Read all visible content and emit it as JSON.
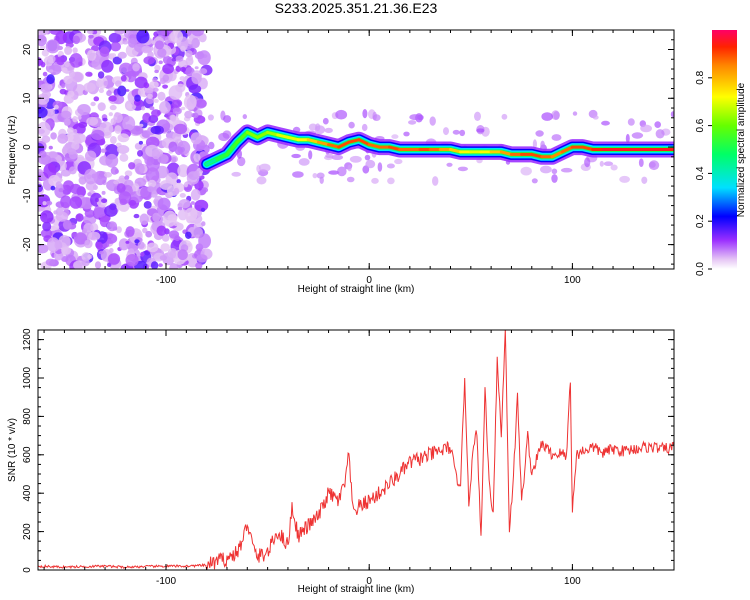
{
  "figure_title": "S233.2025.351.21.36.E23",
  "chart_data": [
    {
      "type": "heatmap",
      "title": "S233.2025.351.21.36.E23",
      "xlabel": "Height of straight line (km)",
      "ylabel": "Frequency (Hz)",
      "xlim": [
        -163,
        150
      ],
      "ylim": [
        -25,
        24
      ],
      "xticks": [
        -100,
        0,
        100
      ],
      "xtick_labels": [
        "-100",
        "0",
        "100"
      ],
      "yticks": [
        20,
        10,
        0,
        -10,
        -20
      ],
      "ytick_labels": [
        "20",
        "10",
        "0",
        "-10",
        "-20"
      ],
      "colorbar": {
        "label": "Normalized spectral amplitude",
        "range": [
          0,
          1
        ],
        "ticks": [
          0.0,
          0.2,
          0.4,
          0.6,
          0.8
        ],
        "tick_labels": [
          "0.0",
          "0.2",
          "0.4",
          "0.6",
          "0.8"
        ],
        "colormap": "rainbow"
      },
      "noise_region_x": [
        -163,
        -80
      ],
      "ridge": {
        "x": [
          -80,
          -75,
          -70,
          -65,
          -60,
          -55,
          -50,
          -45,
          -40,
          -35,
          -30,
          -25,
          -20,
          -15,
          -10,
          -5,
          0,
          5,
          10,
          15,
          20,
          25,
          30,
          35,
          40,
          45,
          50,
          55,
          60,
          65,
          70,
          75,
          80,
          85,
          90,
          95,
          100,
          105,
          110,
          115,
          120,
          125,
          130,
          135,
          140,
          145,
          150
        ],
        "frequency_hz": [
          -3.5,
          -2.5,
          -1.5,
          1.0,
          3.0,
          2.0,
          3.0,
          2.5,
          2.0,
          1.5,
          1.5,
          1.0,
          0.5,
          0.0,
          1.0,
          1.5,
          0.5,
          0.0,
          0.0,
          -0.5,
          -0.5,
          -0.5,
          -0.5,
          -0.5,
          -0.5,
          -1.0,
          -1.0,
          -1.0,
          -1.0,
          -1.0,
          -1.5,
          -1.5,
          -1.5,
          -2.0,
          -2.0,
          -1.0,
          0.0,
          0.0,
          -0.5,
          -0.5,
          -0.5,
          -0.5,
          -0.5,
          -0.5,
          -0.5,
          -0.5,
          -0.5
        ],
        "amplitude": [
          0.35,
          0.5,
          0.55,
          0.55,
          0.6,
          0.65,
          0.6,
          0.7,
          0.7,
          0.7,
          0.75,
          0.8,
          0.85,
          0.9,
          0.9,
          0.9,
          0.9,
          0.85,
          0.9,
          0.9,
          0.85,
          0.9,
          0.9,
          0.85,
          0.8,
          0.75,
          0.7,
          0.7,
          0.75,
          0.8,
          0.85,
          0.9,
          0.9,
          0.9,
          0.85,
          0.85,
          0.9,
          0.9,
          0.9,
          0.95,
          0.95,
          0.95,
          0.95,
          0.95,
          0.95,
          0.95,
          0.95
        ]
      }
    },
    {
      "type": "line",
      "xlabel": "Height of straight line (km)",
      "ylabel": "SNR (10 * v/v)",
      "xlim": [
        -163,
        150
      ],
      "ylim": [
        0,
        1250
      ],
      "xticks": [
        -100,
        0,
        100
      ],
      "xtick_labels": [
        "-100",
        "0",
        "100"
      ],
      "yticks": [
        0,
        200,
        400,
        600,
        800,
        1000,
        1200
      ],
      "ytick_labels": [
        "0",
        "200",
        "400",
        "600",
        "800",
        "1000",
        "1200"
      ],
      "line_color": "#ee3333",
      "series": [
        {
          "name": "SNR",
          "x": [
            -163,
            -150,
            -140,
            -130,
            -120,
            -110,
            -100,
            -90,
            -80,
            -75,
            -70,
            -65,
            -62,
            -60,
            -57,
            -55,
            -50,
            -45,
            -40,
            -38,
            -35,
            -30,
            -25,
            -20,
            -15,
            -12,
            -10,
            -8,
            -5,
            0,
            5,
            10,
            15,
            20,
            25,
            30,
            35,
            40,
            43,
            45,
            47,
            49,
            51,
            53,
            55,
            57,
            59,
            61,
            63,
            65,
            67,
            69,
            71,
            73,
            75,
            78,
            80,
            85,
            90,
            95,
            97,
            99,
            100,
            102,
            105,
            110,
            115,
            120,
            125,
            130,
            135,
            140,
            145,
            150
          ],
          "y": [
            20,
            15,
            18,
            20,
            15,
            18,
            20,
            20,
            25,
            45,
            60,
            90,
            160,
            250,
            110,
            70,
            90,
            200,
            130,
            330,
            180,
            230,
            280,
            400,
            360,
            450,
            600,
            300,
            330,
            360,
            400,
            450,
            500,
            560,
            580,
            600,
            620,
            640,
            470,
            460,
            1000,
            350,
            600,
            730,
            150,
            950,
            450,
            300,
            1100,
            700,
            1250,
            200,
            500,
            900,
            350,
            700,
            500,
            660,
            600,
            610,
            580,
            1000,
            300,
            600,
            620,
            640,
            610,
            630,
            620,
            630,
            640,
            640,
            630,
            640
          ]
        }
      ]
    }
  ]
}
